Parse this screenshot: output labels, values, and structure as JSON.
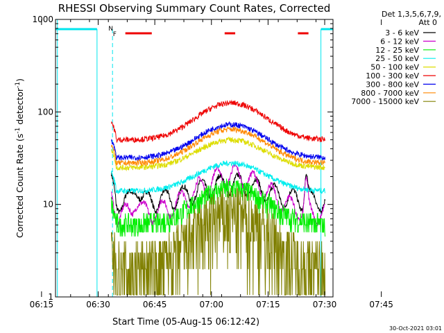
{
  "chart_data": {
    "type": "line",
    "title": "RHESSI Observing Summary Count Rates, Corrected",
    "xlabel": "Start Time (05-Aug-15 06:12:42)",
    "ylabel_main": "Corrected Count Rate (s",
    "ylabel_sup1": "-1",
    "ylabel_mid": " detector",
    "ylabel_sup2": "-1",
    "ylabel_end": ")",
    "yscale": "log",
    "ylim": [
      1,
      1000
    ],
    "xlim_minutes": [
      6.0,
      79.5
    ],
    "x_ticks": [
      "06:15",
      "06:30",
      "06:45",
      "07:00",
      "07:15",
      "07:30",
      "07:45"
    ],
    "y_ticks": [
      "1",
      "10",
      "100",
      "1000"
    ],
    "footer_date": "30-Oct-2021 03:01",
    "legend_header": [
      "Det 1,3,5,6,7,9,",
      "Att 0"
    ],
    "series": [
      {
        "name": "3 - 6 keV",
        "color": "#000000",
        "approx_base": 11,
        "approx_peak": 17
      },
      {
        "name": "6 - 12 keV",
        "color": "#cc00cc",
        "approx_base": 8,
        "approx_peak": 21
      },
      {
        "name": "12 - 25 keV",
        "color": "#00ee00",
        "approx_base": 6,
        "approx_peak": 15
      },
      {
        "name": "25 - 50 keV",
        "color": "#00eeee",
        "approx_base": 14,
        "approx_peak": 28
      },
      {
        "name": "50 - 100 keV",
        "color": "#dddd00",
        "approx_base": 25,
        "approx_peak": 50
      },
      {
        "name": "100 - 300 keV",
        "color": "#ee0000",
        "approx_base": 50,
        "approx_peak": 125
      },
      {
        "name": "300 - 800 keV",
        "color": "#0000ee",
        "approx_base": 32,
        "approx_peak": 73
      },
      {
        "name": "800 - 7000 keV",
        "color": "#ff8800",
        "approx_base": 28,
        "approx_peak": 65
      },
      {
        "name": "7000 - 15000 keV",
        "color": "#808000",
        "approx_base": 2,
        "approx_peak": 8
      }
    ],
    "flag_labels": [
      "N",
      "F"
    ],
    "night_color": "#00e5ee",
    "flare_color": "#ee0000"
  }
}
